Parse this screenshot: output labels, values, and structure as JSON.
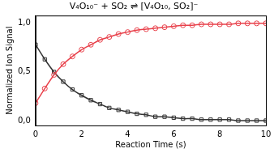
{
  "chart_data": {
    "type": "scatter",
    "title": "V₄O₁₀⁻ + SO₂ ⇌ [V₄O₁₀, SO₂]⁻",
    "x_label": "Reaction Time (s)",
    "y_label": "Normalized Ion Signal",
    "x": [
      0,
      0.4,
      0.8,
      1.2,
      1.6,
      2.0,
      2.4,
      2.8,
      3.2,
      3.6,
      4.0,
      4.4,
      4.8,
      5.2,
      5.6,
      6.0,
      6.4,
      6.8,
      7.2,
      7.6,
      8.0,
      8.4,
      8.8,
      9.2,
      9.6,
      10.0
    ],
    "series": [
      {
        "color": "#e8404a",
        "marker": "circle",
        "line_style": "solid",
        "values": [
          0.18,
          0.33,
          0.47,
          0.58,
          0.66,
          0.73,
          0.78,
          0.83,
          0.86,
          0.89,
          0.91,
          0.93,
          0.94,
          0.95,
          0.96,
          0.97,
          0.98,
          0.98,
          0.99,
          0.99,
          0.99,
          0.99,
          1.0,
          1.0,
          1.0,
          1.0
        ]
      },
      {
        "color": "#333333",
        "marker": "square",
        "line_style": "solid",
        "values": [
          0.78,
          0.63,
          0.5,
          0.4,
          0.32,
          0.26,
          0.21,
          0.17,
          0.13,
          0.11,
          0.09,
          0.07,
          0.06,
          0.04,
          0.04,
          0.03,
          0.02,
          0.02,
          0.01,
          0.01,
          0.01,
          0.01,
          0.0,
          0.0,
          0.0,
          0.0
        ]
      }
    ],
    "xlim": [
      0,
      10
    ],
    "xticks": [
      0,
      2,
      4,
      6,
      8,
      10
    ],
    "ylim": [
      -0.05,
      1.08
    ],
    "yticks": [
      {
        "value": 0,
        "label": "0,0"
      },
      {
        "value": 0.5,
        "label": "0,5"
      },
      {
        "value": 1,
        "label": "1,0"
      }
    ],
    "grid": false
  }
}
